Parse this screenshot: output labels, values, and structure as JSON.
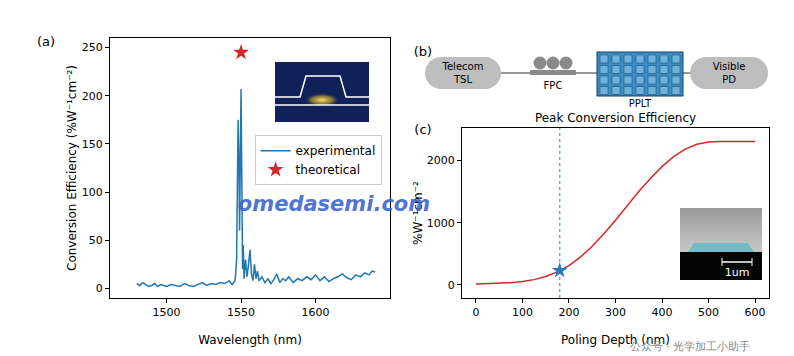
{
  "chart_data": [
    {
      "panel": "(a)",
      "type": "line",
      "x_label": "Wavelength (nm)",
      "y_label": "Conversion Efficiency (%W⁻¹cm⁻²)",
      "xlim": [
        1462,
        1650
      ],
      "xticks": [
        1500,
        1550,
        1600
      ],
      "ylim": [
        -10,
        260
      ],
      "yticks": [
        0,
        50,
        100,
        150,
        200,
        250
      ],
      "grid": false,
      "legend": "center right",
      "series": [
        {
          "name": "experimental",
          "color": "#1f77b4",
          "x": [
            1480,
            1482,
            1484,
            1486,
            1488,
            1490,
            1492,
            1494,
            1496,
            1498,
            1500,
            1503,
            1506,
            1509,
            1512,
            1515,
            1518,
            1521,
            1524,
            1527,
            1530,
            1533,
            1536,
            1539,
            1542,
            1544,
            1546,
            1547,
            1548,
            1548.5,
            1549,
            1550,
            1550.5,
            1551,
            1551.5,
            1552,
            1553,
            1554,
            1555,
            1556,
            1557,
            1558,
            1559,
            1560,
            1561,
            1562,
            1564,
            1566,
            1568,
            1570,
            1572,
            1574,
            1576,
            1578,
            1580,
            1582,
            1585,
            1588,
            1591,
            1594,
            1597,
            1600,
            1603,
            1606,
            1609,
            1612,
            1615,
            1618,
            1621,
            1624,
            1627,
            1630,
            1633,
            1636,
            1638,
            1640
          ],
          "values": [
            5,
            3,
            6,
            4,
            2,
            3,
            5,
            2,
            4,
            3,
            2,
            4,
            3,
            2,
            5,
            3,
            2,
            4,
            6,
            3,
            5,
            4,
            6,
            5,
            8,
            4,
            8,
            30,
            175,
            140,
            60,
            207,
            110,
            20,
            45,
            10,
            30,
            12,
            25,
            40,
            15,
            8,
            25,
            10,
            18,
            8,
            12,
            6,
            10,
            5,
            9,
            15,
            6,
            10,
            8,
            12,
            6,
            10,
            8,
            12,
            9,
            14,
            8,
            12,
            7,
            10,
            12,
            15,
            11,
            9,
            14,
            12,
            16,
            14,
            18,
            17
          ]
        },
        {
          "name": "theoretical",
          "type": "scatter",
          "marker": "star",
          "color": "#d62728",
          "x": [
            1550
          ],
          "values": [
            245
          ]
        }
      ]
    },
    {
      "panel": "(c)",
      "type": "line",
      "title": "Peak Conversion Efficiency",
      "x_label": "Poling Depth (nm)",
      "y_label": "%W⁻¹cm⁻²",
      "xlim": [
        -30,
        630
      ],
      "xticks": [
        0,
        100,
        200,
        300,
        400,
        500,
        600
      ],
      "ylim": [
        -210,
        2520
      ],
      "yticks": [
        0,
        1000,
        2000
      ],
      "grid": false,
      "series": [
        {
          "color": "#d62728",
          "x": [
            0,
            25,
            50,
            75,
            100,
            125,
            150,
            175,
            200,
            225,
            250,
            275,
            300,
            325,
            350,
            375,
            400,
            425,
            450,
            475,
            500,
            525,
            550,
            575,
            600
          ],
          "values": [
            15,
            18,
            25,
            35,
            55,
            85,
            135,
            210,
            310,
            450,
            620,
            820,
            1040,
            1270,
            1500,
            1710,
            1900,
            2060,
            2180,
            2260,
            2295,
            2305,
            2305,
            2305,
            2305
          ]
        },
        {
          "type": "scatter",
          "marker": "star",
          "color": "#2a7ab9",
          "x": [
            180
          ],
          "values": [
            230
          ]
        }
      ],
      "vline": {
        "x": 180,
        "color": "#6fa8dc",
        "line_style": "dotted"
      },
      "inset_label": "1um"
    }
  ],
  "diagram": {
    "panel": "(b)",
    "nodes": [
      {
        "label": "Telecom TSL"
      },
      {
        "label": "FPC"
      },
      {
        "label": "PPLT"
      },
      {
        "label": "Visible PD"
      }
    ]
  },
  "watermarks": [
    "omedasemi.com",
    "公众号 · 光学加工小助手"
  ]
}
